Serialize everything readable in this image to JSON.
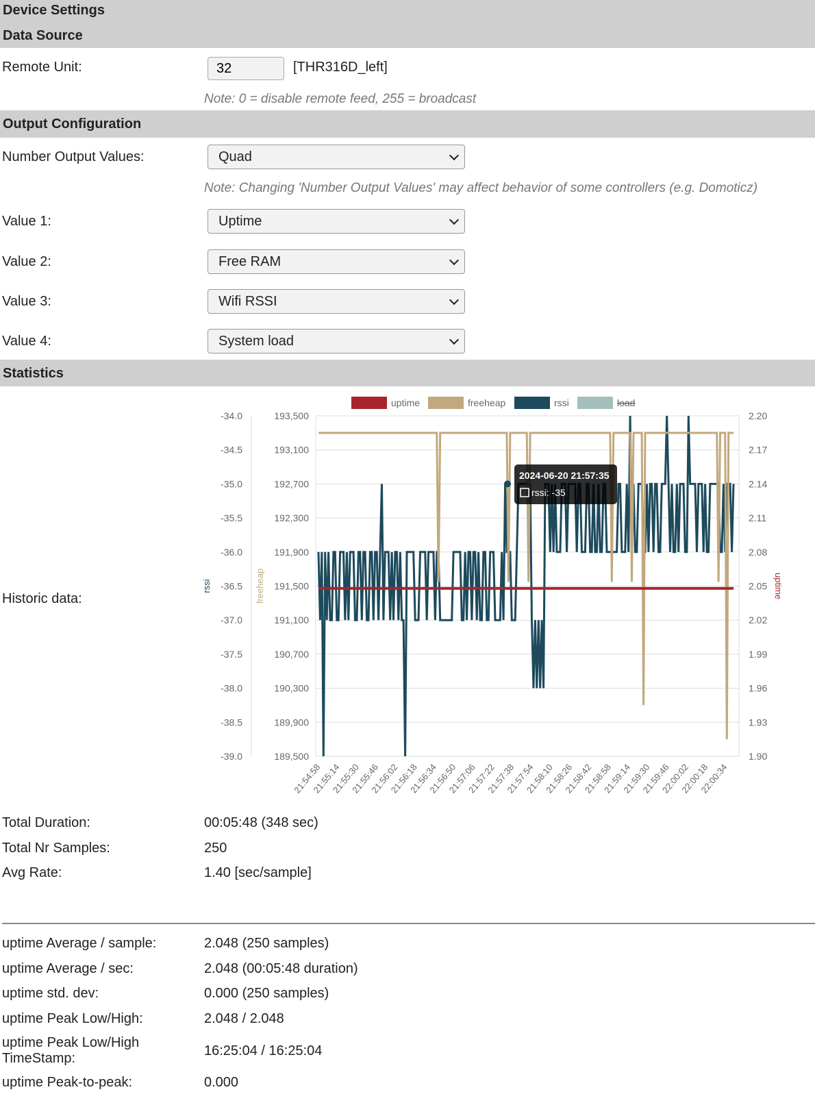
{
  "sections": {
    "device_settings": "Device Settings",
    "data_source": "Data Source",
    "output_configuration": "Output Configuration",
    "statistics": "Statistics"
  },
  "data_source": {
    "remote_unit_label": "Remote Unit:",
    "remote_unit_value": "32",
    "remote_unit_name": "[THR316D_left]",
    "note": "Note: 0 = disable remote feed, 255 = broadcast"
  },
  "output": {
    "number_label": "Number Output Values:",
    "number_value": "Quad",
    "note": "Note: Changing 'Number Output Values' may affect behavior of some controllers (e.g. Domoticz)",
    "values": [
      {
        "label": "Value 1:",
        "selected": "Uptime"
      },
      {
        "label": "Value 2:",
        "selected": "Free RAM"
      },
      {
        "label": "Value 3:",
        "selected": "Wifi RSSI"
      },
      {
        "label": "Value 4:",
        "selected": "System load"
      }
    ]
  },
  "statistics": {
    "historic_label": "Historic data:",
    "rows": [
      {
        "label": "Total Duration:",
        "value": "00:05:48 (348 sec)"
      },
      {
        "label": "Total Nr Samples:",
        "value": "250"
      },
      {
        "label": "Avg Rate:",
        "value": "1.40 [sec/sample]"
      }
    ],
    "uptime_rows": [
      {
        "label": "uptime Average / sample:",
        "value": "2.048 (250 samples)"
      },
      {
        "label": "uptime Average / sec:",
        "value": "2.048 (00:05:48 duration)"
      },
      {
        "label": "uptime std. dev:",
        "value": "0.000 (250 samples)"
      },
      {
        "label": "uptime Peak Low/High:",
        "value": "2.048 / 2.048"
      },
      {
        "label": "uptime Peak Low/High TimeStamp:",
        "value": "16:25:04 / 16:25:04"
      },
      {
        "label": "uptime Peak-to-peak:",
        "value": "0.000"
      }
    ]
  },
  "chart_data": {
    "type": "line",
    "x": [
      "21:54:58",
      "21:55:14",
      "21:55:30",
      "21:55:46",
      "21:56:02",
      "21:56:18",
      "21:56:34",
      "21:56:50",
      "21:57:06",
      "21:57:22",
      "21:57:38",
      "21:57:54",
      "21:58:10",
      "21:58:26",
      "21:58:42",
      "21:58:58",
      "21:59:14",
      "21:59:30",
      "21:59:46",
      "22:00:02",
      "22:00:18",
      "22:00:34"
    ],
    "series": [
      {
        "name": "uptime",
        "color": "#a8262b",
        "axis": "uptime",
        "approx_value": 2.048,
        "hidden": false
      },
      {
        "name": "freeheap",
        "color": "#c2a87e",
        "axis": "freeheap",
        "approx_value": 193300,
        "dips_to": [
          191550,
          190100,
          189700
        ],
        "hidden": false
      },
      {
        "name": "rssi",
        "color": "#1d4a5c",
        "axis": "rssi",
        "range": [
          -39,
          -34
        ],
        "typical_values": [
          -35,
          -36,
          -37
        ],
        "hidden": false
      },
      {
        "name": "load",
        "color": "#a4bfbb",
        "axis": "",
        "hidden": true
      }
    ],
    "axes": {
      "rssi": {
        "label": "rssi",
        "ticks": [
          "-34.0",
          "-34.5",
          "-35.0",
          "-35.5",
          "-36.0",
          "-36.5",
          "-37.0",
          "-37.5",
          "-38.0",
          "-38.5",
          "-39.0"
        ],
        "range": [
          -39,
          -34
        ]
      },
      "freeheap": {
        "label": "freeheap",
        "ticks": [
          "193,500",
          "193,100",
          "192,700",
          "192,300",
          "191,900",
          "191,500",
          "191,100",
          "190,700",
          "190,300",
          "189,900",
          "189,500"
        ],
        "range": [
          189500,
          193500
        ]
      },
      "uptime": {
        "label": "uptime",
        "ticks": [
          "2.20",
          "2.17",
          "2.14",
          "2.11",
          "2.08",
          "2.05",
          "2.02",
          "1.99",
          "1.96",
          "1.93",
          "1.90"
        ],
        "range": [
          1.9,
          2.2
        ]
      }
    },
    "tooltip": {
      "title": "2024-06-20 21:57:35",
      "text": "rssi: -35"
    },
    "grid": true,
    "legend_position": "top"
  }
}
